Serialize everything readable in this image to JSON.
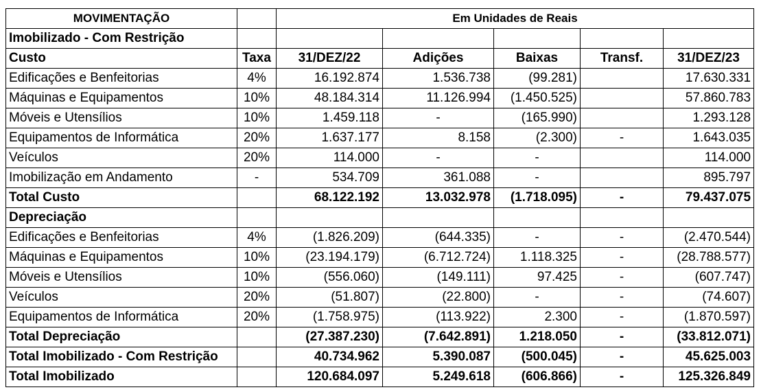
{
  "header": {
    "movimentacao": "MOVIMENTAÇÃO",
    "unidades": "Em Unidades de Reais"
  },
  "section_imobilizado": "Imobilizado - Com Restrição",
  "columns": {
    "custo": "Custo",
    "taxa": "Taxa",
    "dez22": "31/DEZ/22",
    "adicoes": "Adições",
    "baixas": "Baixas",
    "transf": "Transf.",
    "dez23": "31/DEZ/23"
  },
  "custo_rows": [
    {
      "label": "Edificações e Benfeitorias",
      "taxa": "4%",
      "dez22": "16.192.874",
      "adicoes": "1.536.738",
      "baixas": "(99.281)",
      "transf": "",
      "dez23": "17.630.331"
    },
    {
      "label": "Máquinas e Equipamentos",
      "taxa": "10%",
      "dez22": "48.184.314",
      "adicoes": "11.126.994",
      "baixas": "(1.450.525)",
      "transf": "",
      "dez23": "57.860.783"
    },
    {
      "label": "Móveis e Utensílios",
      "taxa": "10%",
      "dez22": "1.459.118",
      "adicoes": "-",
      "baixas": "(165.990)",
      "transf": "",
      "dez23": "1.293.128"
    },
    {
      "label": "Equipamentos de Informática",
      "taxa": "20%",
      "dez22": "1.637.177",
      "adicoes": "8.158",
      "baixas": "(2.300)",
      "transf": "-",
      "dez23": "1.643.035"
    },
    {
      "label": "Veículos",
      "taxa": "20%",
      "dez22": "114.000",
      "adicoes": "-",
      "baixas": "-",
      "transf": "",
      "dez23": "114.000"
    },
    {
      "label": "Imobilização em Andamento",
      "taxa": "-",
      "dez22": "534.709",
      "adicoes": "361.088",
      "baixas": "-",
      "transf": "",
      "dez23": "895.797"
    }
  ],
  "total_custo": {
    "label": "Total Custo",
    "taxa": "",
    "dez22": "68.122.192",
    "adicoes": "13.032.978",
    "baixas": "(1.718.095)",
    "transf": "-",
    "dez23": "79.437.075"
  },
  "section_depreciacao": "Depreciação",
  "depreciacao_rows": [
    {
      "label": "Edificações e Benfeitorias",
      "taxa": "4%",
      "dez22": "(1.826.209)",
      "adicoes": "(644.335)",
      "baixas": "-",
      "transf": "-",
      "dez23": "(2.470.544)"
    },
    {
      "label": "Máquinas e Equipamentos",
      "taxa": "10%",
      "dez22": "(23.194.179)",
      "adicoes": "(6.712.724)",
      "baixas": "1.118.325",
      "transf": "-",
      "dez23": "(28.788.577)"
    },
    {
      "label": "Móveis e Utensílios",
      "taxa": "10%",
      "dez22": "(556.060)",
      "adicoes": "(149.111)",
      "baixas": "97.425",
      "transf": "-",
      "dez23": "(607.747)"
    },
    {
      "label": "Veículos",
      "taxa": "20%",
      "dez22": "(51.807)",
      "adicoes": "(22.800)",
      "baixas": "-",
      "transf": "-",
      "dez23": "(74.607)"
    },
    {
      "label": "Equipamentos de Informática",
      "taxa": "20%",
      "dez22": "(1.758.975)",
      "adicoes": "(113.922)",
      "baixas": "2.300",
      "transf": "-",
      "dez23": "(1.870.597)"
    }
  ],
  "totals": [
    {
      "label": "Total Depreciação",
      "taxa": "",
      "dez22": "(27.387.230)",
      "adicoes": "(7.642.891)",
      "baixas": "1.218.050",
      "transf": "-",
      "dez23": "(33.812.071)"
    },
    {
      "label": "Total Imobilizado - Com Restrição",
      "taxa": "",
      "dez22": "40.734.962",
      "adicoes": "5.390.087",
      "baixas": "(500.045)",
      "transf": "-",
      "dez23": "45.625.003"
    },
    {
      "label": "Total Imobilizado",
      "taxa": "",
      "dez22": "120.684.097",
      "adicoes": "5.249.618",
      "baixas": "(606.866)",
      "transf": "-",
      "dez23": "125.326.849"
    }
  ]
}
